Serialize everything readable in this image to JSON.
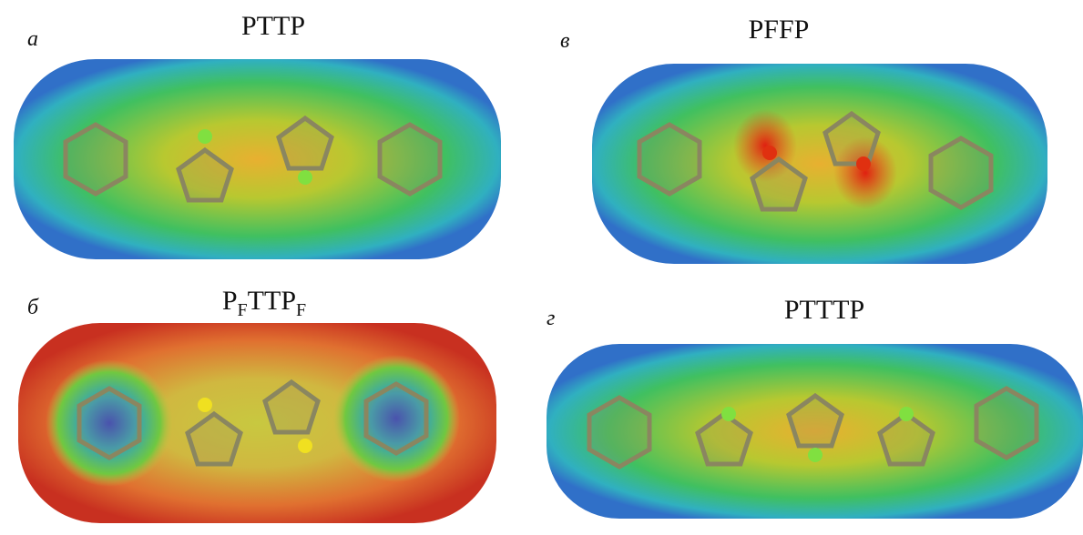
{
  "panels": [
    {
      "label": "а",
      "title": [
        {
          "text": "PTTP"
        }
      ]
    },
    {
      "label": "в",
      "title": [
        {
          "text": "PFFP"
        }
      ]
    },
    {
      "label": "б",
      "title": [
        {
          "text": "P"
        },
        {
          "text": "F",
          "sub": true
        },
        {
          "text": "TTP"
        },
        {
          "text": "F",
          "sub": true
        }
      ]
    },
    {
      "label": "г",
      "title": [
        {
          "text": "PTTTP"
        }
      ]
    }
  ]
}
